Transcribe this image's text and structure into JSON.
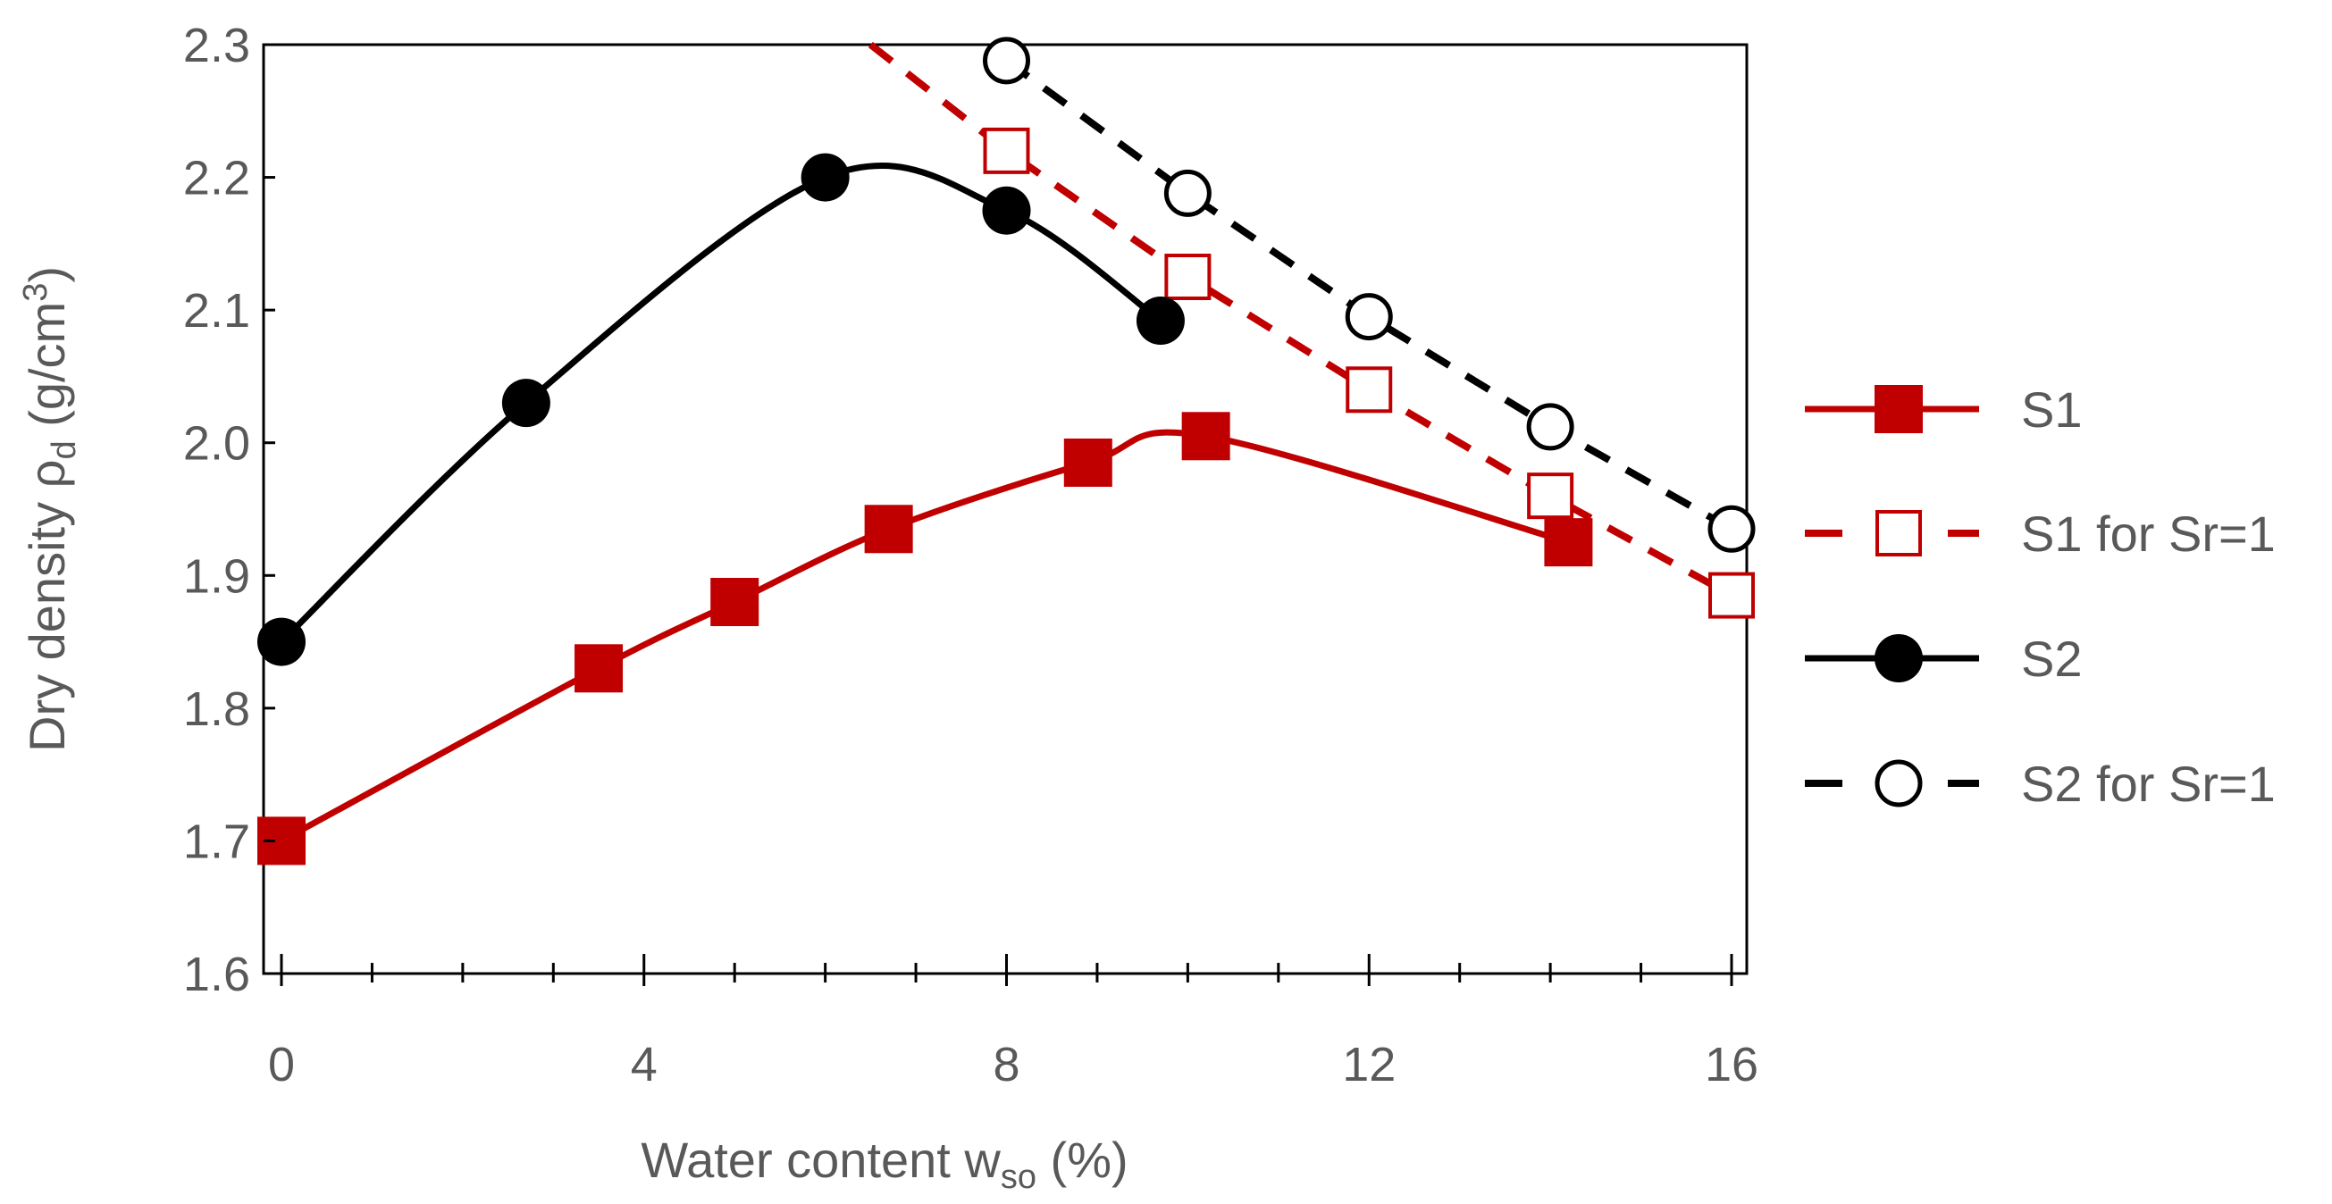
{
  "chart_data": {
    "type": "line",
    "title": "",
    "xlabel": {
      "main": "Water content w",
      "sub": "so",
      "suffix": " (%)"
    },
    "ylabel": {
      "main": "Dry density ρ",
      "sub": "d",
      "mid": " (g/cm",
      "sup": "3",
      "suffix": ")"
    },
    "xlim": [
      0,
      16
    ],
    "ylim": [
      1.6,
      2.3
    ],
    "xticks": [
      0,
      4,
      8,
      12,
      16
    ],
    "xtick_labels": [
      "0",
      "4",
      "8",
      "12",
      "16"
    ],
    "xminor_step": 1,
    "yticks": [
      1.6,
      1.7,
      1.8,
      1.9,
      2.0,
      2.1,
      2.2,
      2.3
    ],
    "ytick_labels": [
      "1.6",
      "1.7",
      "1.8",
      "1.9",
      "2.0",
      "2.1",
      "2.2",
      "2.3"
    ],
    "grid": false,
    "legend_position": "right",
    "series": [
      {
        "name": "S1",
        "color": "#c00000",
        "marker": "square-filled",
        "line": "solid-smooth",
        "x": [
          0,
          3.5,
          5,
          6.7,
          8.9,
          10.2,
          14.2
        ],
        "y": [
          1.7,
          1.83,
          1.88,
          1.935,
          1.985,
          2.005,
          1.925
        ]
      },
      {
        "name": "S1 for Sr=1",
        "color": "#c00000",
        "marker": "square-open",
        "line": "dashed",
        "x": [
          8,
          10,
          12,
          14,
          16
        ],
        "y": [
          2.22,
          2.125,
          2.04,
          1.96,
          1.885
        ],
        "line_x_start": 6.5,
        "line_y_start": 2.3
      },
      {
        "name": "S2",
        "color": "#000000",
        "marker": "circle-filled",
        "line": "solid-smooth",
        "x": [
          0,
          2.7,
          6,
          8,
          9.7
        ],
        "y": [
          1.85,
          2.03,
          2.2,
          2.175,
          2.092
        ]
      },
      {
        "name": "S2 for Sr=1",
        "color": "#000000",
        "marker": "circle-open",
        "line": "dashed",
        "x": [
          8,
          10,
          12,
          14,
          16
        ],
        "y": [
          2.288,
          2.188,
          2.095,
          2.012,
          1.935
        ]
      }
    ]
  }
}
